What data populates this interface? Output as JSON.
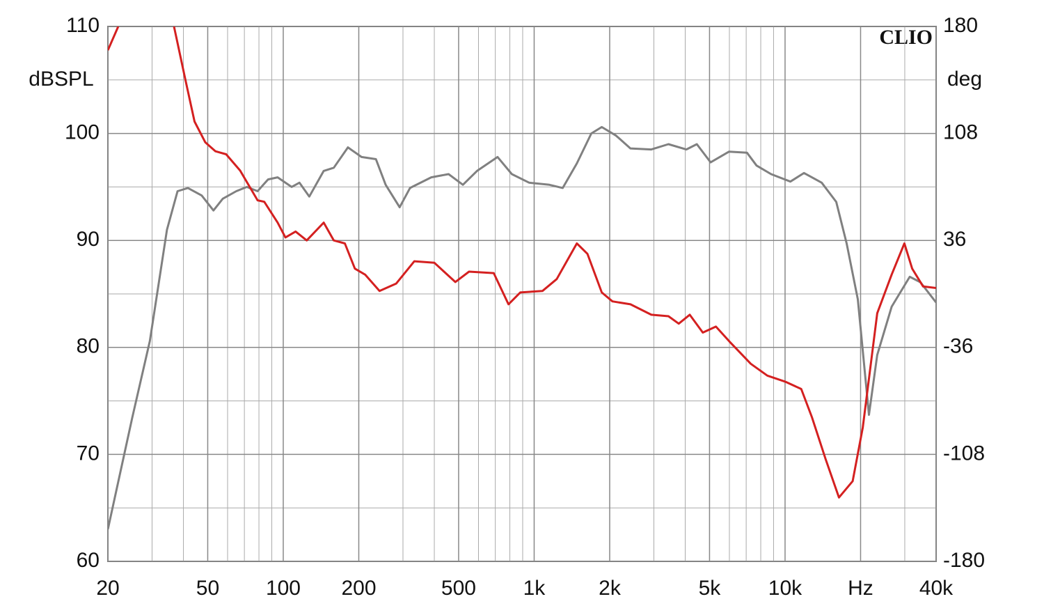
{
  "chart_data": {
    "type": "line",
    "log_x": true,
    "grid": true,
    "logo": "CLIO",
    "ylabel": "dBSPL",
    "y2label": "deg",
    "xlim": [
      20,
      40000
    ],
    "ylim": [
      60,
      110
    ],
    "y2lim": [
      -180,
      180
    ],
    "xticks": [
      20,
      50,
      100,
      200,
      500,
      {
        "value": 1000,
        "label": "1k"
      },
      {
        "value": 2000,
        "label": "2k"
      },
      {
        "value": 5000,
        "label": "5k"
      },
      {
        "value": 10000,
        "label": "10k"
      },
      {
        "value": 20000,
        "label": "Hz"
      },
      {
        "value": 40000,
        "label": "40k"
      }
    ],
    "xminor_ticks": [
      30,
      40,
      60,
      70,
      80,
      90,
      300,
      400,
      600,
      700,
      800,
      900,
      3000,
      4000,
      6000,
      7000,
      8000,
      9000,
      30000
    ],
    "yticks": [
      60,
      70,
      80,
      90,
      100,
      110
    ],
    "yminor_ticks": [
      65,
      75,
      85,
      95,
      105
    ],
    "y2ticks": [
      -180,
      -108,
      -36,
      36,
      108,
      180
    ],
    "series": [
      {
        "color": "#808080",
        "x": [
          20,
          25,
          29.4,
          34.4,
          37.9,
          41.7,
          47.3,
          52.7,
          57.4,
          65,
          71.6,
          79,
          87,
          95,
          108,
          116,
          127,
          145,
          159,
          181,
          205,
          234,
          256,
          291,
          320,
          389,
          456,
          520,
          592,
          715,
          815,
          955,
          1150,
          1300,
          1480,
          1690,
          1860,
          2120,
          2420,
          2930,
          3430,
          4040,
          4450,
          5050,
          5980,
          7050,
          7700,
          8800,
          10500,
          11900,
          14000,
          16000,
          17600,
          19500,
          21600,
          23300,
          26600,
          31400,
          34600,
          40000
        ],
        "values": [
          63.0,
          73.4,
          80.6,
          91.0,
          94.6,
          94.9,
          94.2,
          92.8,
          93.9,
          94.6,
          95.0,
          94.6,
          95.7,
          95.9,
          95.0,
          95.4,
          94.1,
          96.5,
          96.8,
          98.7,
          97.8,
          97.6,
          95.2,
          93.1,
          94.9,
          95.9,
          96.2,
          95.2,
          96.5,
          97.8,
          96.2,
          95.4,
          95.2,
          94.9,
          97.2,
          100.0,
          100.6,
          99.8,
          98.6,
          98.5,
          99.0,
          98.5,
          99.0,
          97.3,
          98.3,
          98.2,
          97.0,
          96.2,
          95.5,
          96.3,
          95.4,
          93.6,
          89.7,
          84.5,
          73.7,
          79.3,
          83.8,
          86.6,
          86.1,
          84.2
        ]
      },
      {
        "color": "#d42020",
        "axis": "y2",
        "x": [
          20,
          22,
          30,
          36.7,
          40.5,
          44.3,
          48.9,
          53.7,
          59.2,
          67.3,
          79,
          84,
          95,
          102,
          112,
          124,
          145,
          159,
          176,
          193,
          212,
          242,
          282,
          333,
          400,
          485,
          550,
          690,
          790,
          880,
          1080,
          1230,
          1480,
          1630,
          1860,
          2050,
          2420,
          2930,
          3430,
          3770,
          4170,
          4700,
          5300,
          6000,
          7300,
          8500,
          10000,
          11600,
          12800,
          14500,
          16400,
          18600,
          20400,
          23300,
          26600,
          29900,
          32100,
          35500,
          40000
        ],
        "values": [
          164,
          180,
          null,
          180,
          146,
          116,
          102,
          96,
          94,
          83,
          63,
          62,
          48,
          38,
          42,
          36,
          48,
          36,
          34,
          17,
          13,
          2,
          7,
          22,
          21,
          8,
          15,
          14,
          -7,
          1,
          2,
          10,
          34,
          27,
          1,
          -5,
          -7,
          -14,
          -15,
          -20,
          -14,
          -26,
          -22,
          -32,
          -47,
          -55,
          -59,
          -64,
          -83,
          -111,
          -137,
          -126,
          -90,
          -13,
          13,
          34,
          17,
          5,
          4
        ]
      }
    ]
  }
}
